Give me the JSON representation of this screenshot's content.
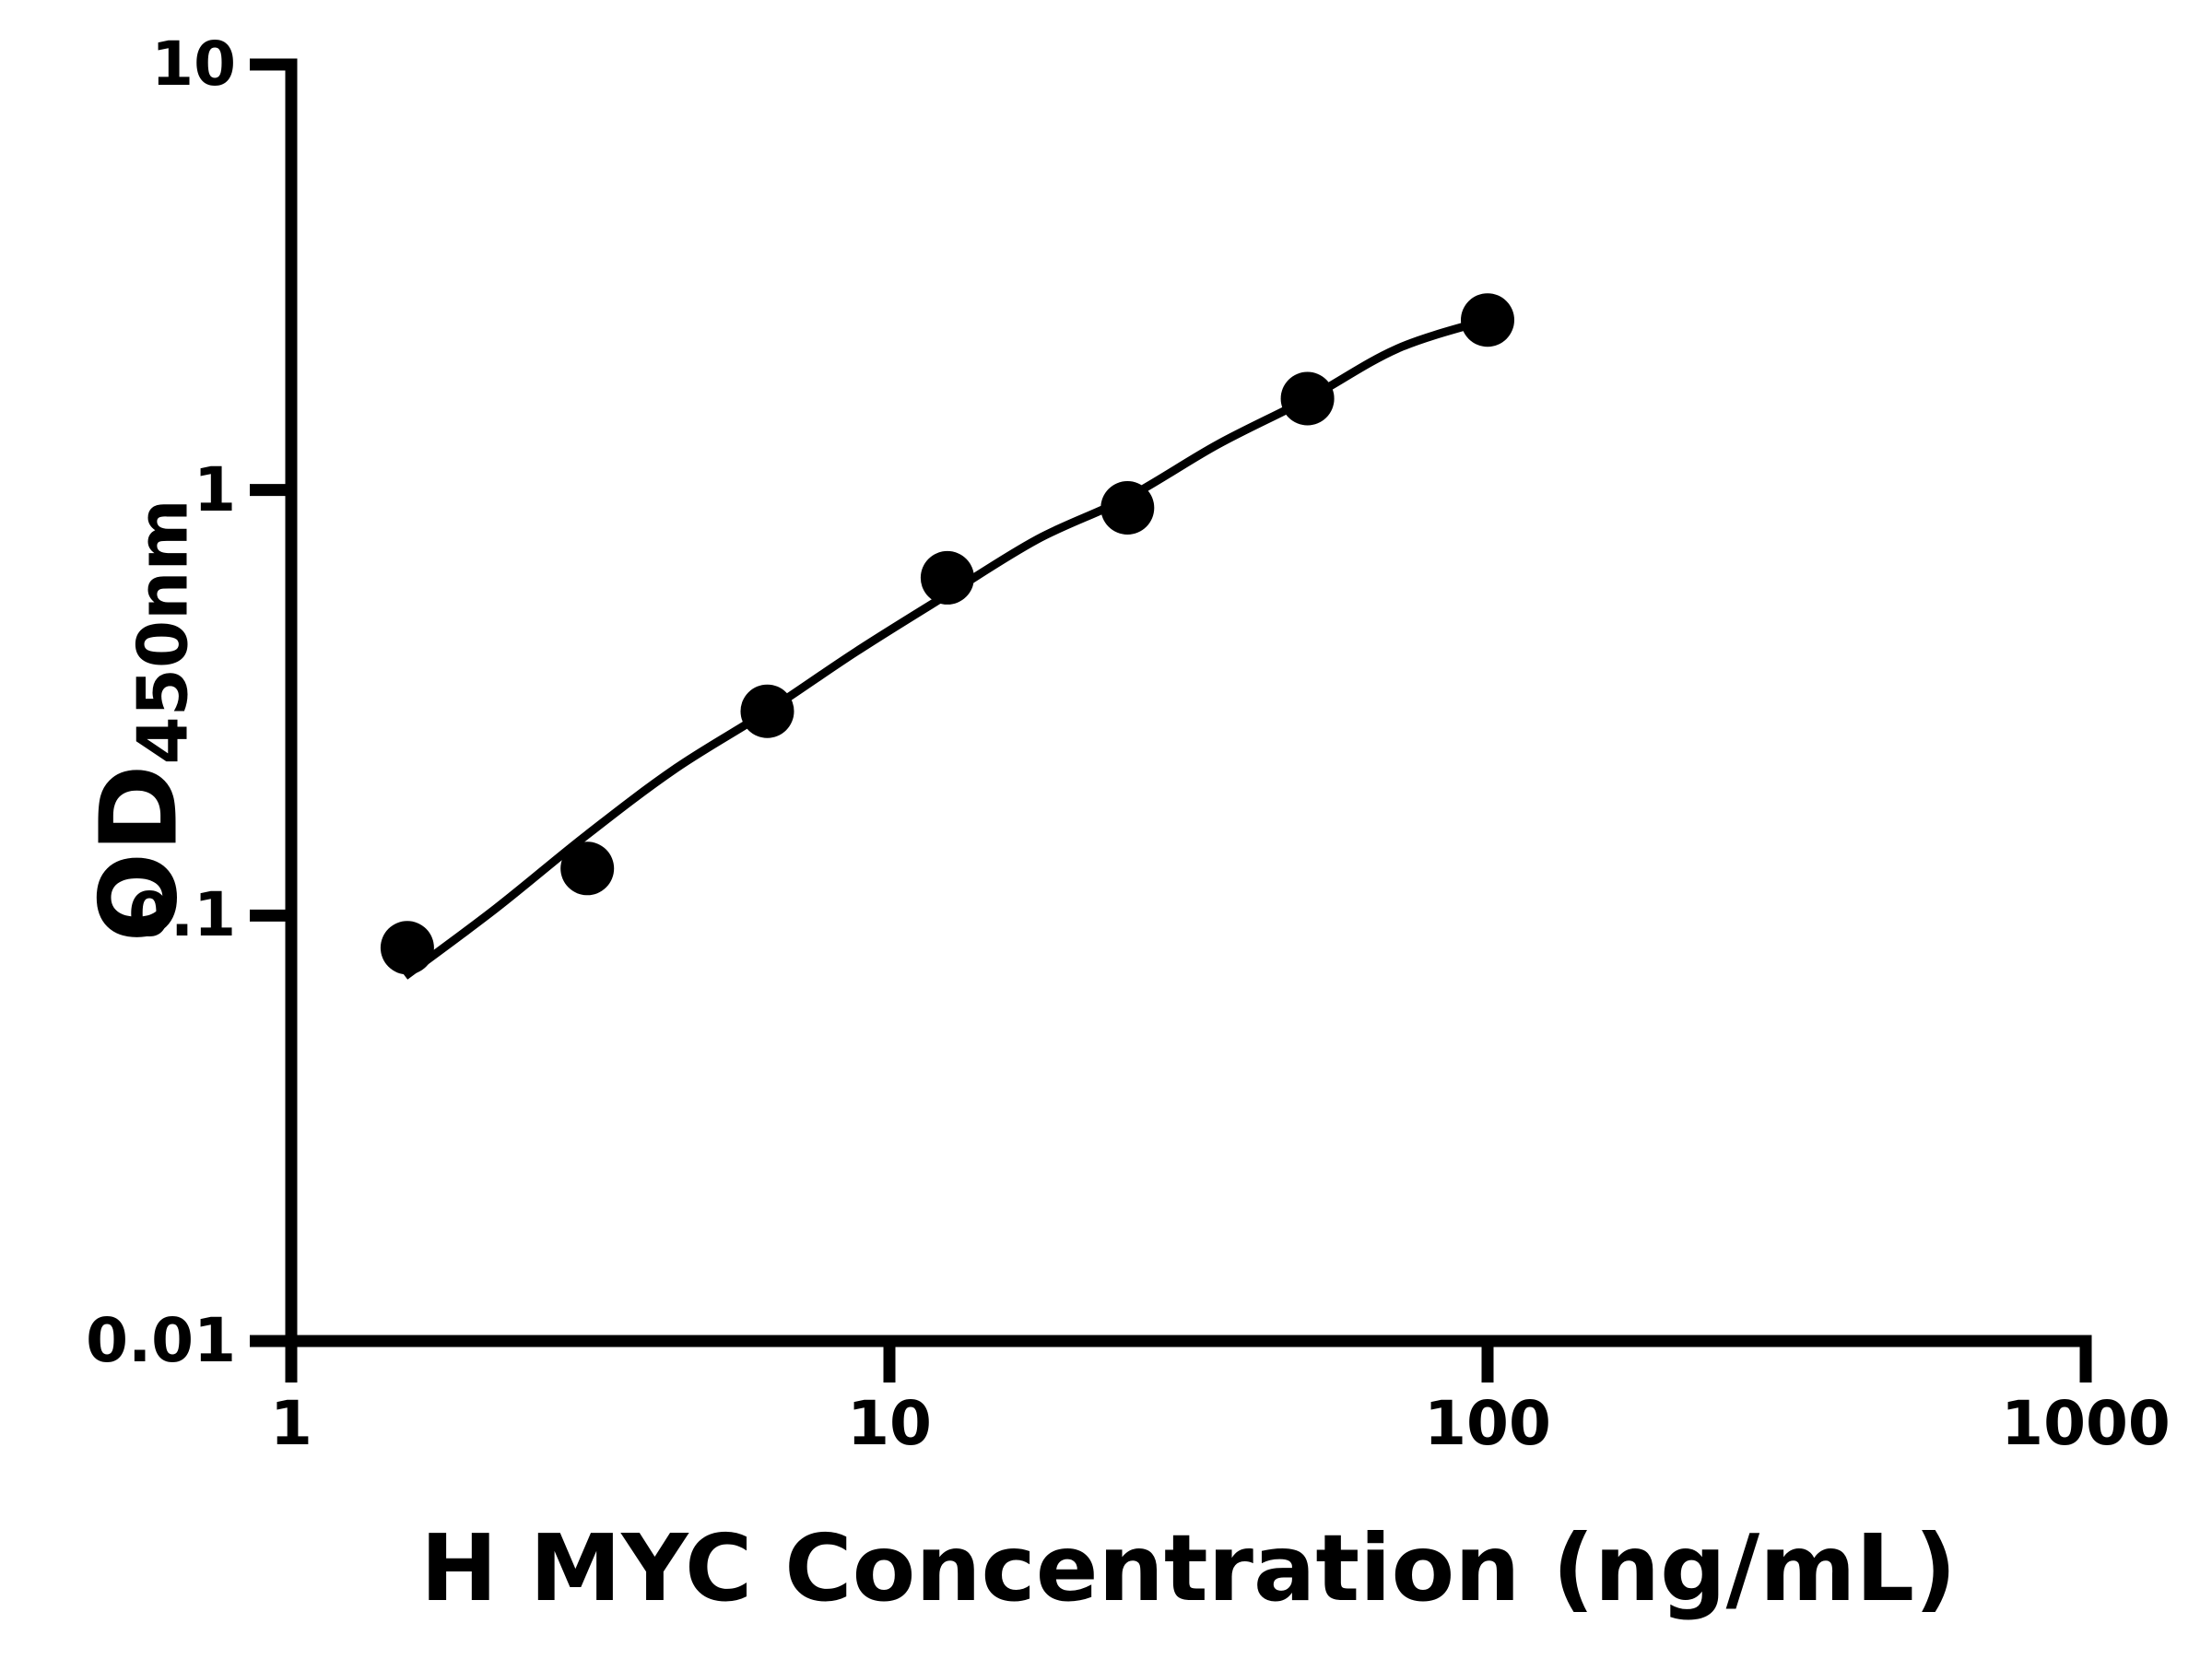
{
  "chart_data": {
    "type": "scatter",
    "title": "",
    "xlabel": "H MYC Concentration (ng/mL)",
    "ylabel": "OD450nm",
    "ylabel_parts": {
      "main": "OD",
      "sub": "450nm"
    },
    "x_scale": "log10",
    "y_scale": "log10",
    "xlim": [
      1,
      1000
    ],
    "ylim": [
      0.01,
      10
    ],
    "x_ticks": {
      "values": [
        1,
        10,
        100,
        1000
      ],
      "labels": [
        "1",
        "10",
        "100",
        "1000"
      ]
    },
    "y_ticks": {
      "values": [
        10,
        1,
        0.1,
        0.01
      ],
      "labels": [
        "10",
        "1",
        "0.1",
        "0.01"
      ]
    },
    "grid": false,
    "legend": null,
    "background_color": "#ffffff",
    "axis_color": "#000000",
    "marker_color": "#000000",
    "line_color": "#000000",
    "points": {
      "x": [
        1.563,
        3.125,
        6.25,
        12.5,
        25,
        50,
        100
      ],
      "y": [
        0.084,
        0.129,
        0.302,
        0.622,
        0.908,
        1.64,
        2.51
      ]
    },
    "fit_curve": {
      "x": [
        1.55,
        2.2,
        3.125,
        4.4,
        6.25,
        8.8,
        12.5,
        17.7,
        25,
        35.4,
        50,
        70.7,
        100
      ],
      "y": [
        0.072,
        0.104,
        0.155,
        0.222,
        0.302,
        0.417,
        0.568,
        0.767,
        0.959,
        1.28,
        1.636,
        2.15,
        2.512
      ]
    }
  }
}
